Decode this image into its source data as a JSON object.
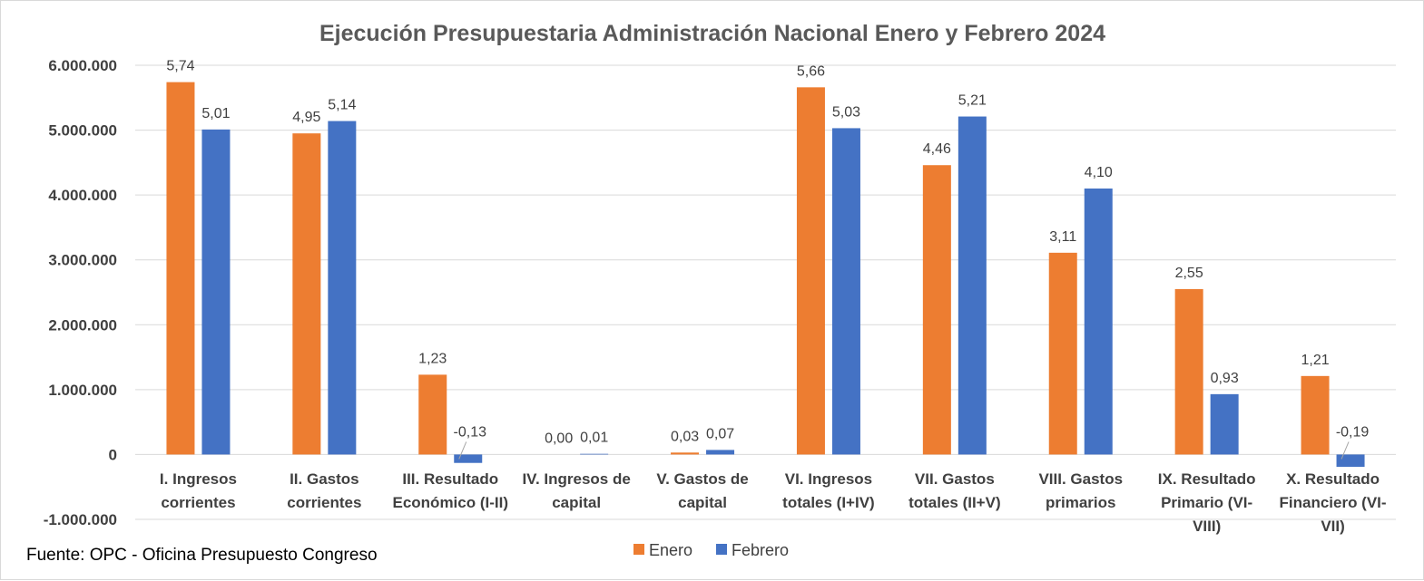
{
  "chart_data": {
    "type": "bar",
    "title": "Ejecución Presupuestaria Administración Nacional Enero y Febrero 2024",
    "xlabel": "",
    "ylabel": "",
    "ylim": [
      -1000000,
      6000000
    ],
    "yticks": [
      -1000000,
      0,
      1000000,
      2000000,
      3000000,
      4000000,
      5000000,
      6000000
    ],
    "ytick_labels": [
      "-1.000.000",
      "0",
      "1.000.000",
      "2.000.000",
      "3.000.000",
      "4.000.000",
      "5.000.000",
      "6.000.000"
    ],
    "grid": true,
    "legend_position": "bottom-center",
    "categories": [
      [
        "I. Ingresos",
        "corrientes"
      ],
      [
        "II. Gastos",
        "corrientes"
      ],
      [
        "III. Resultado",
        "Económico (I-II)"
      ],
      [
        "IV. Ingresos de",
        "capital"
      ],
      [
        "V. Gastos de",
        "capital"
      ],
      [
        "VI. Ingresos",
        "totales (I+IV)"
      ],
      [
        "VII. Gastos",
        "totales (II+V)"
      ],
      [
        "VIII. Gastos",
        "primarios"
      ],
      [
        "IX. Resultado",
        "Primario (VI-",
        "VIII)"
      ],
      [
        "X. Resultado",
        "Financiero (VI-",
        "VII)"
      ]
    ],
    "series": [
      {
        "name": "Enero",
        "color": "#ED7D31",
        "values": [
          5740000,
          4950000,
          1230000,
          0,
          30000,
          5660000,
          4460000,
          3110000,
          2550000,
          1210000
        ],
        "labels": [
          "5,74",
          "4,95",
          "1,23",
          "0,00",
          "0,03",
          "5,66",
          "4,46",
          "3,11",
          "2,55",
          "1,21"
        ]
      },
      {
        "name": "Febrero",
        "color": "#4472C4",
        "values": [
          5010000,
          5140000,
          -130000,
          10000,
          70000,
          5030000,
          5210000,
          4100000,
          930000,
          -190000
        ],
        "labels": [
          "5,01",
          "5,14",
          "-0,13",
          "0,01",
          "0,07",
          "5,03",
          "5,21",
          "4,10",
          "0,93",
          "-0,19"
        ]
      }
    ]
  },
  "source_note": "Fuente: OPC - Oficina Presupuesto Congreso"
}
